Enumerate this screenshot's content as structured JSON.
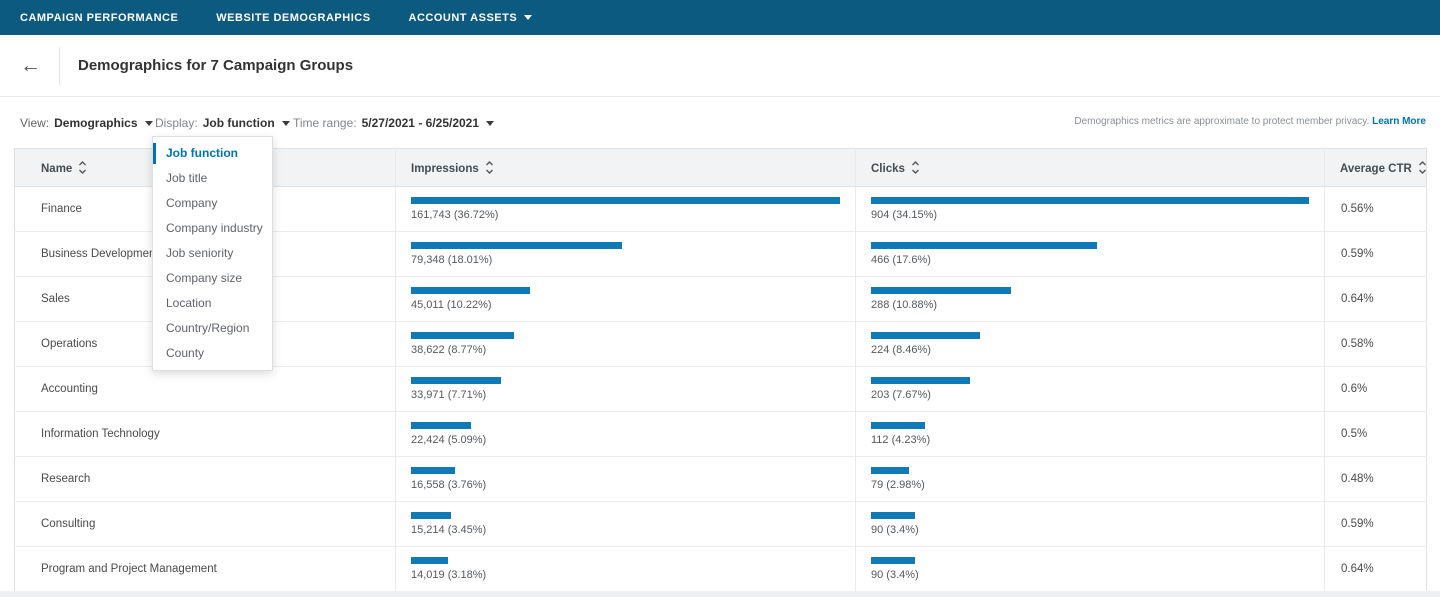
{
  "nav": {
    "tabs": [
      {
        "label": "CAMPAIGN PERFORMANCE",
        "has_caret": false
      },
      {
        "label": "WEBSITE DEMOGRAPHICS",
        "has_caret": false
      },
      {
        "label": "ACCOUNT ASSETS",
        "has_caret": true
      }
    ]
  },
  "header": {
    "back_arrow": "←",
    "title": "Demographics for 7 Campaign Groups"
  },
  "filters": {
    "view_label": "View:",
    "view_value": "Demographics",
    "display_label": "Display:",
    "display_value": "Job function",
    "time_label": "Time range:",
    "time_value": "5/27/2021 - 6/25/2021",
    "privacy_note": "Demographics metrics are approximate to protect member privacy.",
    "learn_more": "Learn More"
  },
  "display_dropdown": {
    "items": [
      {
        "label": "Job function",
        "selected": true
      },
      {
        "label": "Job title",
        "selected": false
      },
      {
        "label": "Company",
        "selected": false
      },
      {
        "label": "Company industry",
        "selected": false
      },
      {
        "label": "Job seniority",
        "selected": false
      },
      {
        "label": "Company size",
        "selected": false
      },
      {
        "label": "Location",
        "selected": false
      },
      {
        "label": "Country/Region",
        "selected": false
      },
      {
        "label": "County",
        "selected": false
      }
    ]
  },
  "table": {
    "columns": [
      "Name",
      "Impressions",
      "Clicks",
      "Average CTR"
    ],
    "rows": [
      {
        "name": "Finance",
        "impressions": "161,743 (36.72%)",
        "impressions_bar": 100,
        "clicks": "904 (34.15%)",
        "clicks_bar": 100,
        "ctr": "0.56%"
      },
      {
        "name": "Business Development",
        "impressions": "79,348 (18.01%)",
        "impressions_bar": 49.1,
        "clicks": "466 (17.6%)",
        "clicks_bar": 51.5,
        "ctr": "0.59%"
      },
      {
        "name": "Sales",
        "impressions": "45,011 (10.22%)",
        "impressions_bar": 27.8,
        "clicks": "288 (10.88%)",
        "clicks_bar": 31.9,
        "ctr": "0.64%"
      },
      {
        "name": "Operations",
        "impressions": "38,622 (8.77%)",
        "impressions_bar": 23.9,
        "clicks": "224 (8.46%)",
        "clicks_bar": 24.8,
        "ctr": "0.58%"
      },
      {
        "name": "Accounting",
        "impressions": "33,971 (7.71%)",
        "impressions_bar": 21.0,
        "clicks": "203 (7.67%)",
        "clicks_bar": 22.5,
        "ctr": "0.6%"
      },
      {
        "name": "Information Technology",
        "impressions": "22,424 (5.09%)",
        "impressions_bar": 13.9,
        "clicks": "112 (4.23%)",
        "clicks_bar": 12.4,
        "ctr": "0.5%"
      },
      {
        "name": "Research",
        "impressions": "16,558 (3.76%)",
        "impressions_bar": 10.2,
        "clicks": "79 (2.98%)",
        "clicks_bar": 8.7,
        "ctr": "0.48%"
      },
      {
        "name": "Consulting",
        "impressions": "15,214 (3.45%)",
        "impressions_bar": 9.4,
        "clicks": "90 (3.4%)",
        "clicks_bar": 10.0,
        "ctr": "0.59%"
      },
      {
        "name": "Program and Project Management",
        "impressions": "14,019 (3.18%)",
        "impressions_bar": 8.7,
        "clicks": "90 (3.4%)",
        "clicks_bar": 10.0,
        "ctr": "0.64%"
      }
    ]
  },
  "colors": {
    "nav_background": "#0d5a80",
    "accent_blue": "#0073b1",
    "bar_blue": "#0f7ab5",
    "header_row_background": "#f1f3f5"
  }
}
